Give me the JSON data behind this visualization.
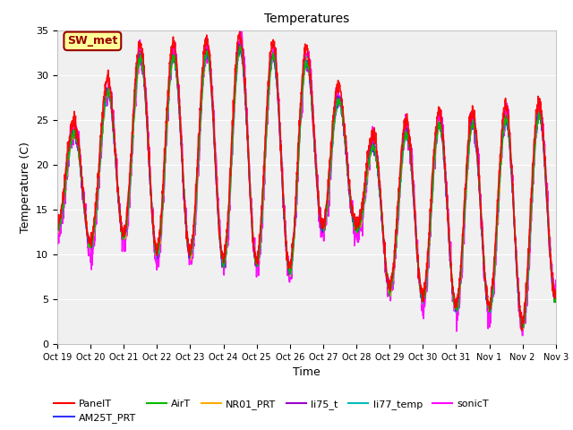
{
  "title": "Temperatures",
  "xlabel": "Time",
  "ylabel": "Temperature (C)",
  "ylim": [
    0,
    35
  ],
  "annotation_text": "SW_met",
  "annotation_bg": "#ffff99",
  "annotation_border": "#990000",
  "annotation_text_color": "#990000",
  "tick_labels": [
    "Oct 19",
    "Oct 20",
    "Oct 21",
    "Oct 22",
    "Oct 23",
    "Oct 24",
    "Oct 25",
    "Oct 26",
    "Oct 27",
    "Oct 28",
    "Oct 29",
    "Oct 30",
    "Oct 31",
    "Nov 1",
    "Nov 2",
    "Nov 3"
  ],
  "series_order": [
    "PanelT",
    "AM25T_PRT",
    "AirT",
    "NR01_PRT",
    "li75_t",
    "li77_temp",
    "sonicT"
  ],
  "series": {
    "PanelT": {
      "color": "#ff0000",
      "lw": 1.2
    },
    "AM25T_PRT": {
      "color": "#3333ff",
      "lw": 1.0
    },
    "AirT": {
      "color": "#00bb00",
      "lw": 1.0
    },
    "NR01_PRT": {
      "color": "#ffaa00",
      "lw": 1.0
    },
    "li75_t": {
      "color": "#9900cc",
      "lw": 1.0
    },
    "li77_temp": {
      "color": "#00bbbb",
      "lw": 1.0
    },
    "sonicT": {
      "color": "#ff00ff",
      "lw": 1.2
    }
  },
  "background_color": "#ffffff",
  "plot_bg": "#f0f0f0",
  "n_days": 15,
  "n_points_per_day": 144,
  "day_highs": [
    23,
    24,
    32,
    32,
    32,
    33,
    33,
    31,
    32,
    22,
    22,
    25,
    24,
    25,
    25,
    26
  ],
  "day_lows": [
    13,
    11,
    12,
    10,
    10,
    9,
    9,
    8,
    13,
    13,
    6,
    5,
    4,
    4,
    2,
    5
  ],
  "legend_ncol": 6,
  "figsize": [
    6.4,
    4.8
  ],
  "dpi": 100
}
